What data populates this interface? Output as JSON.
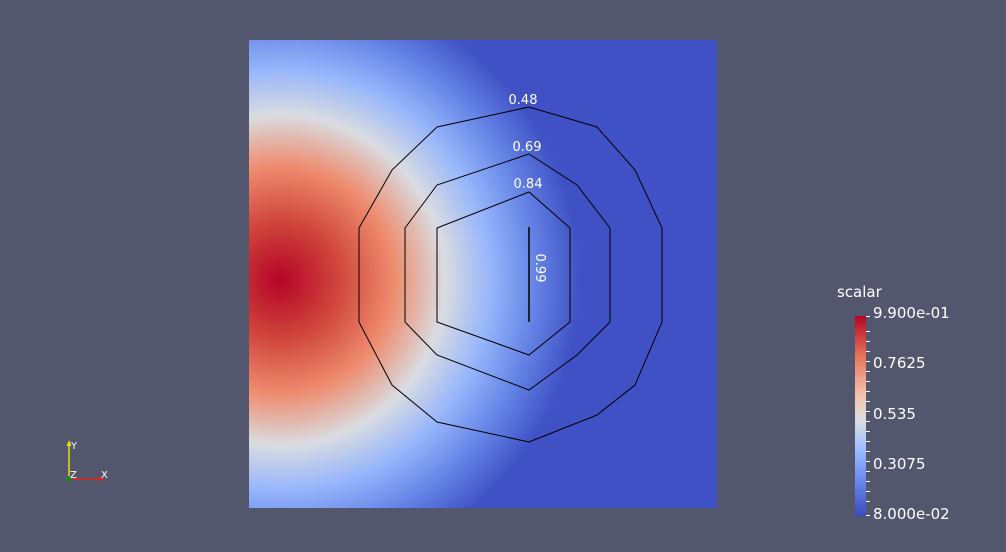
{
  "viewer": {
    "contours": [
      {
        "value": "0.48",
        "label": "0.48"
      },
      {
        "value": "0.69",
        "label": "0.69"
      },
      {
        "value": "0.84",
        "label": "0.84"
      },
      {
        "value": "0.99",
        "label": "0.99"
      }
    ],
    "colormap": {
      "low_color": "#3b4cc0",
      "mid_color": "#dddddd",
      "high_color": "#b40426"
    }
  },
  "colorbar": {
    "title": "scalar",
    "labels": [
      "9.900e-01",
      "0.7625",
      "0.535",
      "0.3075",
      "8.000e-02"
    ]
  },
  "axes": {
    "x": "X",
    "y": "Y",
    "z": "Z"
  },
  "colors": {
    "background": "#52576e",
    "x_axis": "#e0241f",
    "y_axis": "#e7e000",
    "z_axis": "#1e8a1e"
  }
}
